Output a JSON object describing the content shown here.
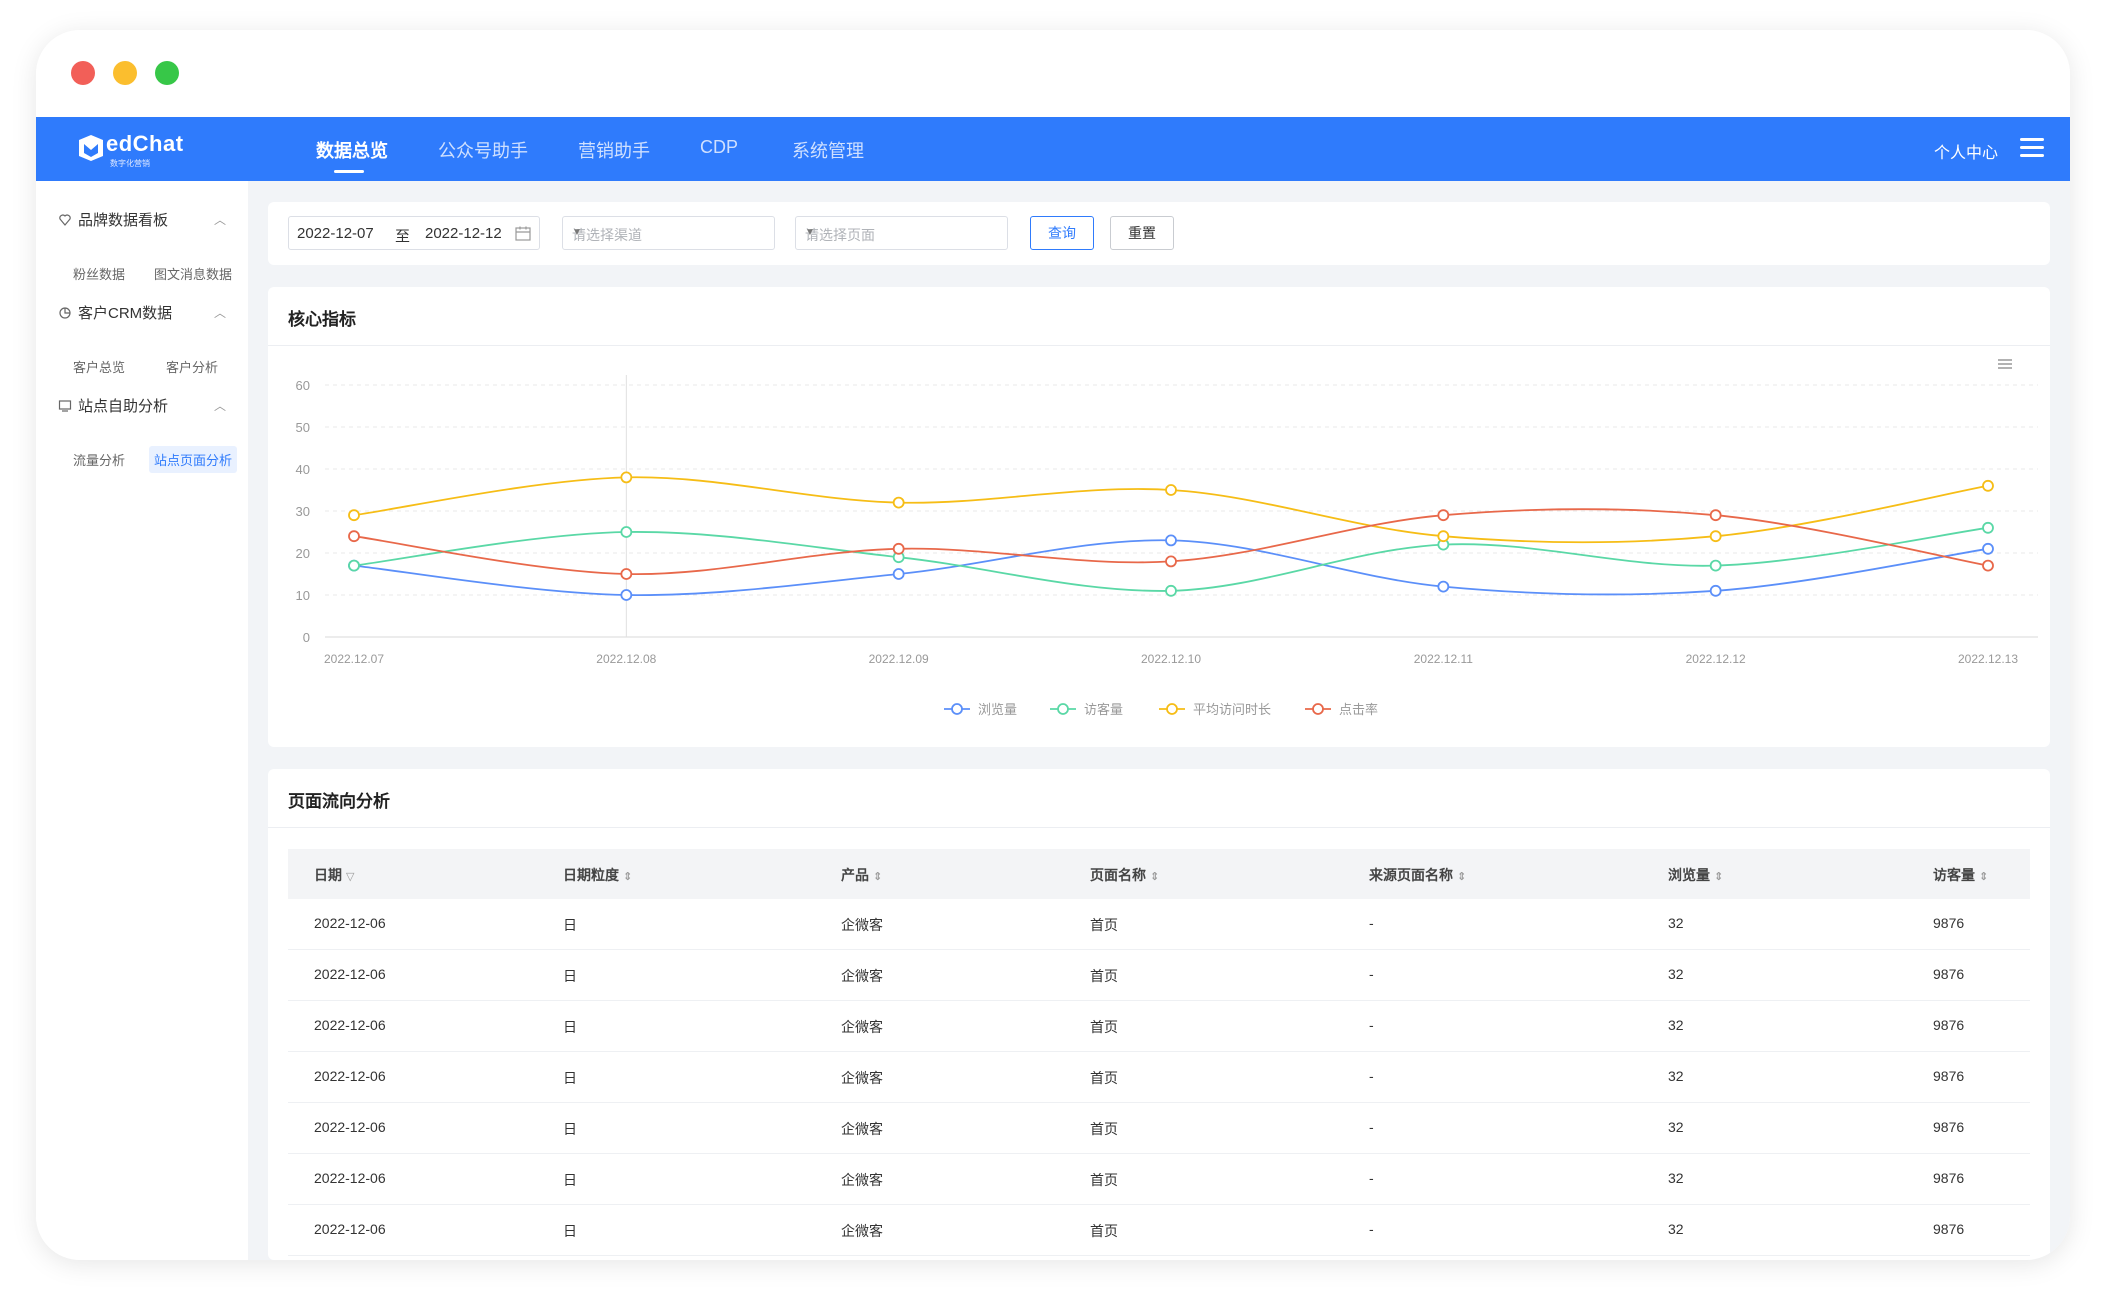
{
  "window_controls": {
    "close": "close-dot",
    "minimize": "minimize-dot",
    "zoom": "zoom-dot"
  },
  "brand": {
    "name": "edChat",
    "sub": "数字化营销"
  },
  "nav": {
    "items": [
      "数据总览",
      "公众号助手",
      "营销助手",
      "CDP",
      "系统管理"
    ],
    "active": "数据总览",
    "user_center": "个人中心"
  },
  "sidebar": {
    "groups": [
      {
        "label": "品牌数据看板",
        "icon": "heart-location-icon",
        "items": [
          "粉丝数据",
          "图文消息数据"
        ]
      },
      {
        "label": "客户CRM数据",
        "icon": "pie-chart-icon",
        "items": [
          "客户总览",
          "客户分析"
        ]
      },
      {
        "label": "站点自助分析",
        "icon": "monitor-icon",
        "items": [
          "流量分析",
          "站点页面分析"
        ]
      }
    ],
    "active_item": "站点页面分析"
  },
  "filters": {
    "date_start": "2022-12-07",
    "date_sep": "至",
    "date_end": "2022-12-12",
    "channel_placeholder": "请选择渠道",
    "page_placeholder": "请选择页面",
    "query_label": "查询",
    "reset_label": "重置"
  },
  "core_metrics": {
    "title": "核心指标"
  },
  "chart_data": {
    "type": "line",
    "x": [
      "2022.12.07",
      "2022.12.08",
      "2022.12.09",
      "2022.12.10",
      "2022.12.11",
      "2022.12.12",
      "2022.12.13"
    ],
    "ylim": [
      0,
      60
    ],
    "yticks": [
      0,
      10,
      20,
      30,
      40,
      50,
      60
    ],
    "grid": true,
    "legend_position": "bottom",
    "series": [
      {
        "name": "浏览量",
        "color": "#5b8ff9",
        "values": [
          17,
          10,
          15,
          23,
          12,
          11,
          21
        ]
      },
      {
        "name": "访客量",
        "color": "#5ad8a6",
        "values": [
          17,
          25,
          19,
          11,
          22,
          17,
          26
        ]
      },
      {
        "name": "平均访问时长",
        "color": "#f6bd16",
        "values": [
          29,
          38,
          32,
          35,
          24,
          24,
          36
        ]
      },
      {
        "name": "点击率",
        "color": "#e8684a",
        "values": [
          24,
          15,
          21,
          18,
          29,
          29,
          17
        ]
      }
    ]
  },
  "flow": {
    "title": "页面流向分析",
    "columns": [
      "日期",
      "日期粒度",
      "产品",
      "页面名称",
      "来源页面名称",
      "浏览量",
      "访客量"
    ],
    "rows": [
      [
        "2022-12-06",
        "日",
        "企微客",
        "首页",
        "-",
        "32",
        "9876"
      ],
      [
        "2022-12-06",
        "日",
        "企微客",
        "首页",
        "-",
        "32",
        "9876"
      ],
      [
        "2022-12-06",
        "日",
        "企微客",
        "首页",
        "-",
        "32",
        "9876"
      ],
      [
        "2022-12-06",
        "日",
        "企微客",
        "首页",
        "-",
        "32",
        "9876"
      ],
      [
        "2022-12-06",
        "日",
        "企微客",
        "首页",
        "-",
        "32",
        "9876"
      ],
      [
        "2022-12-06",
        "日",
        "企微客",
        "首页",
        "-",
        "32",
        "9876"
      ],
      [
        "2022-12-06",
        "日",
        "企微客",
        "首页",
        "-",
        "32",
        "9876"
      ]
    ]
  }
}
